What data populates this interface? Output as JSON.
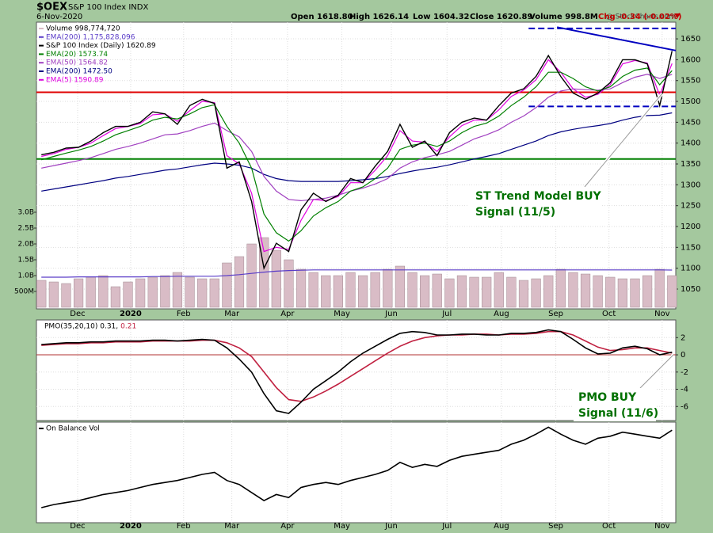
{
  "header": {
    "symbol": "$OEX",
    "name": "S&P 100 Index INDX",
    "date": "6-Nov-2020",
    "quote": [
      "Open 1618.80",
      "High 1626.14",
      "Low 1604.32",
      "Close 1620.89",
      "Volume 998.8M",
      "Chg -0.34 (-0.02%)"
    ],
    "credit": "@ StockCharts.com"
  },
  "chart_data": [
    {
      "type": "line",
      "grid": true,
      "x": [
        0,
        1,
        2,
        3,
        4,
        5,
        6,
        7,
        8,
        9,
        10,
        11,
        12,
        13,
        14,
        15,
        16,
        17,
        18,
        19,
        20,
        21,
        22,
        23,
        24,
        25,
        26,
        27,
        28,
        29,
        30,
        31,
        32,
        33,
        34,
        35,
        36,
        37,
        38,
        39,
        40,
        41,
        42,
        43,
        44,
        45,
        46,
        47,
        48,
        49,
        50,
        51
      ],
      "xlim": [
        -0.4,
        51.3
      ],
      "xticks": [
        {
          "value": 2.93,
          "label": "Dec"
        },
        {
          "value": 7.22,
          "label": "2020"
        },
        {
          "value": 11.5,
          "label": "Feb"
        },
        {
          "value": 15.4,
          "label": "Mar"
        },
        {
          "value": 19.9,
          "label": "Apr"
        },
        {
          "value": 24.3,
          "label": "May"
        },
        {
          "value": 28.3,
          "label": "Jun"
        },
        {
          "value": 32.8,
          "label": "Jul"
        },
        {
          "value": 37.2,
          "label": "Aug"
        },
        {
          "value": 41.6,
          "label": "Sep"
        },
        {
          "value": 45.9,
          "label": "Oct"
        },
        {
          "value": 50.2,
          "label": "Nov"
        }
      ],
      "ylim": [
        1002.5,
        1690
      ],
      "yticks": [
        1050,
        1100,
        1150,
        1200,
        1250,
        1300,
        1350,
        1400,
        1450,
        1500,
        1550,
        1600,
        1650
      ],
      "y2lim": [
        -50000000,
        9000000000
      ],
      "y2ticks": [
        {
          "value": 500000000,
          "label": "500M"
        },
        {
          "value": 1000000000,
          "label": "1.0B"
        },
        {
          "value": 1500000000,
          "label": "1.5B"
        },
        {
          "value": 2000000000,
          "label": "2.0B"
        },
        {
          "value": 2500000000,
          "label": "2.5B"
        },
        {
          "value": 3000000000,
          "label": "3.0B"
        }
      ],
      "series": [
        {
          "name": "Volume 998,774,720",
          "type": "bar",
          "axis": "y2",
          "color": "#d9bcc6",
          "values": [
            850000000.0,
            800000000.0,
            750000000.0,
            900000000.0,
            950000000.0,
            1000000000.0,
            650000000.0,
            800000000.0,
            900000000.0,
            950000000.0,
            1000000000.0,
            1100000000.0,
            950000000.0,
            900000000.0,
            900000000.0,
            1400000000.0,
            1600000000.0,
            2000000000.0,
            2200000000.0,
            1800000000.0,
            1500000000.0,
            1200000000.0,
            1100000000.0,
            1000000000.0,
            1000000000.0,
            1100000000.0,
            1000000000.0,
            1100000000.0,
            1200000000.0,
            1300000000.0,
            1100000000.0,
            1000000000.0,
            1050000000.0,
            900000000.0,
            1000000000.0,
            950000000.0,
            950000000.0,
            1100000000.0,
            950000000.0,
            850000000.0,
            900000000.0,
            1000000000.0,
            1200000000.0,
            1100000000.0,
            1050000000.0,
            1000000000.0,
            950000000.0,
            900000000.0,
            900000000.0,
            1000000000.0,
            1200000000.0,
            1000000000.0
          ]
        },
        {
          "name": "EMA(200) 1,175,828,096",
          "axis": "y2",
          "color": "#5a3cc8",
          "values": [
            950000000.0,
            950000000.0,
            950000000.0,
            960000000.0,
            960000000.0,
            960000000.0,
            960000000.0,
            960000000.0,
            960000000.0,
            970000000.0,
            970000000.0,
            980000000.0,
            980000000.0,
            980000000.0,
            980000000.0,
            1000000000.0,
            1030000000.0,
            1070000000.0,
            1110000000.0,
            1140000000.0,
            1160000000.0,
            1170000000.0,
            1180000000.0,
            1180000000.0,
            1180000000.0,
            1180000000.0,
            1180000000.0,
            1180000000.0,
            1180000000.0,
            1180000000.0,
            1180000000.0,
            1180000000.0,
            1180000000.0,
            1180000000.0,
            1180000000.0,
            1180000000.0,
            1180000000.0,
            1180000000.0,
            1180000000.0,
            1180000000.0,
            1180000000.0,
            1180000000.0,
            1180000000.0,
            1180000000.0,
            1180000000.0,
            1180000000.0,
            1180000000.0,
            1180000000.0,
            1180000000.0,
            1180000000.0,
            1180000000.0,
            1176000000.0
          ]
        },
        {
          "name": "S&P 100 Index (Daily) 1620.89",
          "color": "#000000",
          "values": [
            1372,
            1378,
            1388,
            1390,
            1405,
            1425,
            1440,
            1440,
            1450,
            1475,
            1470,
            1445,
            1490,
            1505,
            1495,
            1340,
            1355,
            1260,
            1100,
            1160,
            1140,
            1240,
            1280,
            1260,
            1275,
            1315,
            1305,
            1345,
            1380,
            1445,
            1390,
            1405,
            1370,
            1425,
            1450,
            1460,
            1455,
            1490,
            1520,
            1530,
            1560,
            1610,
            1560,
            1520,
            1505,
            1520,
            1545,
            1600,
            1600,
            1590,
            1490,
            1620.89
          ]
        },
        {
          "name": "EMA(20) 1573.74",
          "color": "#008000",
          "values": [
            1360,
            1368,
            1376,
            1383,
            1392,
            1405,
            1420,
            1430,
            1440,
            1455,
            1462,
            1458,
            1470,
            1485,
            1492,
            1440,
            1400,
            1340,
            1230,
            1185,
            1165,
            1190,
            1225,
            1245,
            1260,
            1285,
            1295,
            1315,
            1340,
            1385,
            1395,
            1400,
            1392,
            1405,
            1425,
            1440,
            1448,
            1465,
            1490,
            1510,
            1535,
            1570,
            1570,
            1555,
            1535,
            1525,
            1535,
            1560,
            1575,
            1580,
            1540,
            1573.74
          ]
        },
        {
          "name": "EMA(50) 1564.82",
          "color": "#a040c0",
          "values": [
            1340,
            1346,
            1352,
            1358,
            1365,
            1375,
            1385,
            1392,
            1400,
            1410,
            1420,
            1422,
            1430,
            1440,
            1448,
            1430,
            1415,
            1380,
            1320,
            1285,
            1265,
            1262,
            1265,
            1268,
            1275,
            1285,
            1292,
            1302,
            1315,
            1340,
            1355,
            1365,
            1372,
            1380,
            1395,
            1410,
            1420,
            1432,
            1450,
            1465,
            1485,
            1510,
            1525,
            1530,
            1528,
            1527,
            1530,
            1545,
            1558,
            1565,
            1555,
            1564.82
          ]
        },
        {
          "name": "EMA(200) 1472.50",
          "color": "#000080",
          "values": [
            1285,
            1290,
            1295,
            1300,
            1305,
            1310,
            1316,
            1320,
            1325,
            1330,
            1335,
            1338,
            1343,
            1348,
            1352,
            1350,
            1347,
            1340,
            1325,
            1315,
            1310,
            1308,
            1308,
            1308,
            1308,
            1310,
            1312,
            1315,
            1320,
            1327,
            1333,
            1338,
            1342,
            1348,
            1355,
            1362,
            1368,
            1375,
            1385,
            1395,
            1405,
            1418,
            1427,
            1433,
            1438,
            1442,
            1447,
            1455,
            1462,
            1466,
            1467,
            1472.5
          ]
        },
        {
          "name": "EMA(5) 1590.89",
          "color": "#e000e0",
          "values": [
            1368,
            1375,
            1385,
            1390,
            1400,
            1418,
            1435,
            1440,
            1447,
            1468,
            1470,
            1452,
            1478,
            1500,
            1497,
            1370,
            1350,
            1280,
            1140,
            1150,
            1145,
            1215,
            1265,
            1262,
            1272,
            1305,
            1305,
            1335,
            1370,
            1430,
            1405,
            1402,
            1380,
            1415,
            1442,
            1455,
            1455,
            1480,
            1512,
            1527,
            1552,
            1600,
            1570,
            1530,
            1510,
            1517,
            1540,
            1590,
            1598,
            1592,
            1515,
            1590.89
          ]
        }
      ],
      "lines": [
        {
          "value": 1522,
          "color": "#e00000"
        },
        {
          "value": 1362,
          "color": "#008000"
        }
      ],
      "segments": [
        {
          "x": [
            39.4,
            51.3
          ],
          "values": [
            1675,
            1675
          ],
          "color": "#0000c0",
          "dashed": true
        },
        {
          "x": [
            39.4,
            51.3
          ],
          "values": [
            1488,
            1488
          ],
          "color": "#0000c0",
          "dashed": true
        },
        {
          "x": [
            41.7,
            51.3
          ],
          "values": [
            1678,
            1622
          ],
          "color": "#0000c0",
          "dashed": false
        }
      ],
      "annotations": [
        {
          "lines": [
            "ST Trend Model BUY",
            "Signal (11/5)"
          ]
        }
      ]
    },
    {
      "type": "line",
      "grid": true,
      "legend": "inline",
      "x": [
        0,
        1,
        2,
        3,
        4,
        5,
        6,
        7,
        8,
        9,
        10,
        11,
        12,
        13,
        14,
        15,
        16,
        17,
        18,
        19,
        20,
        21,
        22,
        23,
        24,
        25,
        26,
        27,
        28,
        29,
        30,
        31,
        32,
        33,
        34,
        35,
        36,
        37,
        38,
        39,
        40,
        41,
        42,
        43,
        44,
        45,
        46,
        47,
        48,
        49,
        50,
        51
      ],
      "xlim": [
        -0.4,
        51.3
      ],
      "ylim": [
        -7.63,
        4.05
      ],
      "yticks": [
        2,
        0,
        -2,
        -4,
        -6
      ],
      "series": [
        {
          "name": "PMO(35,20,10) 0.31,",
          "color": "#000000",
          "values": [
            1.2,
            1.3,
            1.4,
            1.4,
            1.5,
            1.5,
            1.6,
            1.6,
            1.6,
            1.7,
            1.7,
            1.6,
            1.7,
            1.8,
            1.7,
            0.8,
            -0.5,
            -2,
            -4.5,
            -6.5,
            -6.8,
            -5.5,
            -4,
            -3,
            -2,
            -0.8,
            0.2,
            1,
            1.8,
            2.5,
            2.7,
            2.6,
            2.3,
            2.3,
            2.4,
            2.4,
            2.3,
            2.3,
            2.5,
            2.5,
            2.6,
            2.9,
            2.7,
            1.8,
            0.8,
            0.1,
            0.2,
            0.8,
            1.0,
            0.7,
            0.0,
            0.31
          ]
        },
        {
          "name": "0.21",
          "color": "#c02040",
          "values": [
            1.1,
            1.2,
            1.3,
            1.3,
            1.4,
            1.4,
            1.5,
            1.5,
            1.5,
            1.6,
            1.6,
            1.6,
            1.6,
            1.7,
            1.7,
            1.4,
            0.8,
            -0.2,
            -2,
            -3.8,
            -5.2,
            -5.4,
            -4.9,
            -4.2,
            -3.4,
            -2.5,
            -1.6,
            -0.7,
            0.2,
            1,
            1.6,
            2,
            2.2,
            2.3,
            2.3,
            2.4,
            2.4,
            2.3,
            2.4,
            2.4,
            2.5,
            2.7,
            2.7,
            2.3,
            1.6,
            0.9,
            0.5,
            0.6,
            0.8,
            0.8,
            0.5,
            0.21
          ]
        }
      ],
      "lines": [
        {
          "value": 0,
          "color": "#b03030"
        }
      ],
      "annotations": [
        {
          "lines": [
            "PMO BUY",
            "Signal (11/6)"
          ]
        }
      ]
    },
    {
      "type": "line",
      "grid": true,
      "x": [
        0,
        1,
        2,
        3,
        4,
        5,
        6,
        7,
        8,
        9,
        10,
        11,
        12,
        13,
        14,
        15,
        16,
        17,
        18,
        19,
        20,
        21,
        22,
        23,
        24,
        25,
        26,
        27,
        28,
        29,
        30,
        31,
        32,
        33,
        34,
        35,
        36,
        37,
        38,
        39,
        40,
        41,
        42,
        43,
        44,
        45,
        46,
        47,
        48,
        49,
        50,
        51
      ],
      "xlim": [
        -0.4,
        51.3
      ],
      "ylim": [
        0,
        100
      ],
      "series": [
        {
          "name": "On Balance Vol",
          "color": "#000000",
          "values": [
            15,
            18,
            20,
            22,
            25,
            28,
            30,
            32,
            35,
            38,
            40,
            42,
            45,
            48,
            50,
            42,
            38,
            30,
            22,
            28,
            25,
            35,
            38,
            40,
            38,
            42,
            45,
            48,
            52,
            60,
            55,
            58,
            56,
            62,
            66,
            68,
            70,
            72,
            78,
            82,
            88,
            95,
            88,
            82,
            78,
            84,
            86,
            90,
            88,
            86,
            84,
            92
          ]
        }
      ]
    }
  ]
}
